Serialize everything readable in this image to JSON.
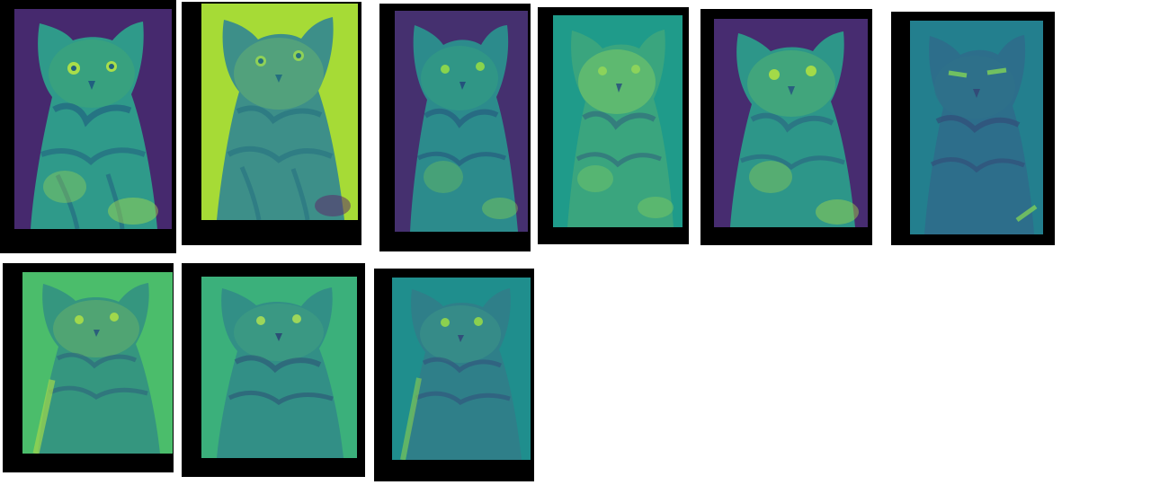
{
  "figure": {
    "subject": "cat",
    "panels": [
      {
        "id": "map-1",
        "background": "#46296e",
        "body": "#2f9a8a",
        "highlight": "#a9de4a",
        "stripe": "#205f7f"
      },
      {
        "id": "map-2",
        "background": "#a6db36",
        "body": "#3d8f89",
        "highlight": "#8fd157",
        "stripe": "#246f7f"
      },
      {
        "id": "map-3",
        "background": "#45306f",
        "body": "#2c8b8c",
        "highlight": "#89d44d",
        "stripe": "#24527c"
      },
      {
        "id": "map-4",
        "background": "#1f9b8a",
        "body": "#3aa57e",
        "highlight": "#8cd35b",
        "stripe": "#2f5f7b"
      },
      {
        "id": "map-5",
        "background": "#472c70",
        "body": "#2d9689",
        "highlight": "#a3da48",
        "stripe": "#2a5f7f"
      },
      {
        "id": "map-6",
        "background": "#237f8e",
        "body": "#2d6e8b",
        "highlight": "#7dcf5a",
        "stripe": "#324b78"
      },
      {
        "id": "map-7",
        "background": "#4bbd6b",
        "body": "#35967f",
        "highlight": "#a1d84c",
        "stripe": "#2b5f7b"
      },
      {
        "id": "map-8",
        "background": "#3bb07b",
        "body": "#328f86",
        "highlight": "#9dd65a",
        "stripe": "#2b4f75"
      },
      {
        "id": "map-9",
        "background": "#1f8e8d",
        "body": "#2f7f89",
        "highlight": "#8bd04f",
        "stripe": "#324f7a"
      }
    ]
  }
}
